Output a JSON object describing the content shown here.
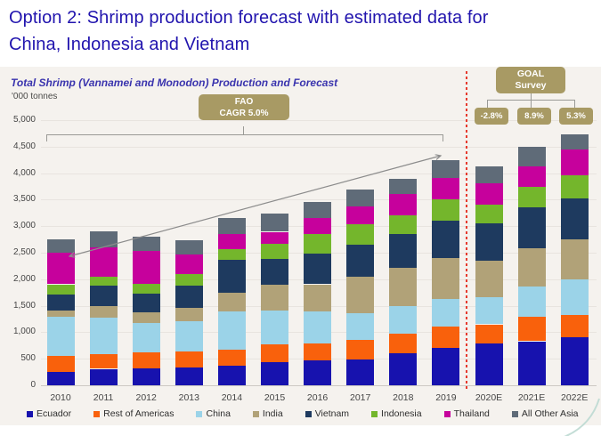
{
  "header": {
    "title_line1": "Option 2: Shrimp production forecast with estimated data for",
    "title_line2": "China, Indonesia and Vietnam"
  },
  "chart": {
    "subtitle": "Total Shrimp (Vannamei and Monodon) Production and Forecast",
    "units": "'000 tonnes",
    "fao_badge": {
      "line1": "FAO",
      "line2": "CAGR 5.0%"
    },
    "goal_badge": {
      "line1": "GOAL",
      "line2": "Survey"
    },
    "goal_values": [
      "-2.8%",
      "8.9%",
      "5.3%"
    ],
    "badge_color": "#a89a64",
    "forecast_divider_color": "#e63a2e"
  },
  "chart_data": {
    "type": "bar",
    "stacked": true,
    "title": "Total Shrimp (Vannamei and Monodon) Production and Forecast",
    "ylabel": "'000 tonnes",
    "ylim": [
      0,
      5000
    ],
    "ytick_step": 500,
    "grid": true,
    "legend_position": "bottom",
    "categories": [
      "2010",
      "2011",
      "2012",
      "2013",
      "2014",
      "2015",
      "2016",
      "2017",
      "2018",
      "2019",
      "2020E",
      "2021E",
      "2022E"
    ],
    "series": [
      {
        "name": "Ecuador",
        "color": "#1712ae",
        "values": [
          250,
          310,
          320,
          340,
          375,
          440,
          465,
          490,
          600,
          700,
          785,
          830,
          900
        ]
      },
      {
        "name": "Rest of Americas",
        "color": "#f9610c",
        "values": [
          310,
          280,
          300,
          300,
          295,
          330,
          320,
          365,
          370,
          405,
          365,
          460,
          430
        ]
      },
      {
        "name": "China",
        "color": "#9bd3e8",
        "values": [
          740,
          690,
          560,
          570,
          720,
          635,
          615,
          505,
          525,
          520,
          505,
          570,
          660
        ]
      },
      {
        "name": "India",
        "color": "#b1a278",
        "values": [
          110,
          220,
          195,
          250,
          350,
          495,
          505,
          690,
          720,
          770,
          700,
          720,
          760
        ]
      },
      {
        "name": "Vietnam",
        "color": "#1e3a5f",
        "values": [
          310,
          380,
          355,
          420,
          620,
          490,
          575,
          605,
          630,
          705,
          700,
          770,
          780
        ]
      },
      {
        "name": "Indonesia",
        "color": "#74b62c",
        "values": [
          185,
          170,
          190,
          215,
          200,
          280,
          365,
          385,
          365,
          405,
          350,
          395,
          435
        ]
      },
      {
        "name": "Thailand",
        "color": "#c6019c",
        "values": [
          590,
          550,
          620,
          375,
          300,
          225,
          315,
          325,
          400,
          405,
          400,
          380,
          480
        ]
      },
      {
        "name": "All Other Asia",
        "color": "#5f6b78",
        "values": [
          250,
          300,
          260,
          265,
          295,
          345,
          290,
          325,
          280,
          340,
          320,
          365,
          295
        ]
      }
    ],
    "annotations": {
      "fao_cagr_label": "FAO CAGR 5.0%",
      "goal_survey_label": "GOAL Survey",
      "goal_survey_growth": [
        "-2.8%",
        "8.9%",
        "5.3%"
      ],
      "forecast_divider_after_category": "2019",
      "trend_arrow": {
        "from_category": "2010",
        "to_category": "2019"
      }
    }
  }
}
